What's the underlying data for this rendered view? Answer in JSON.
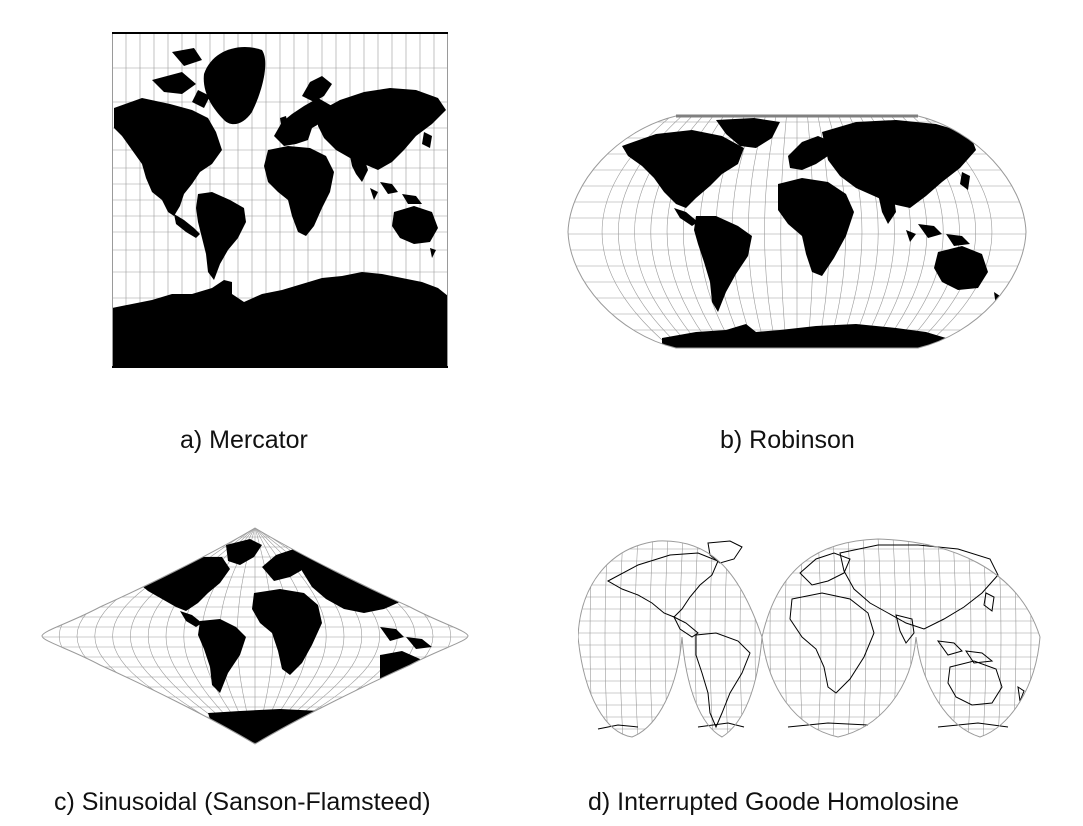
{
  "figure": {
    "panels": [
      {
        "caption": "a) Mercator",
        "projection": "mercator",
        "land_style": "filled"
      },
      {
        "caption": "b) Robinson",
        "projection": "robinson",
        "land_style": "filled"
      },
      {
        "caption": "c) Sinusoidal (Sanson-Flamsteed)",
        "projection": "sinusoidal",
        "land_style": "filled"
      },
      {
        "caption": "d) Interrupted Goode Homolosine",
        "projection": "goode-homolosine",
        "land_style": "outline"
      }
    ]
  },
  "colors": {
    "land": "#000000",
    "graticule": "#9a9a9a",
    "background": "#ffffff",
    "caption_text": "#111111"
  }
}
